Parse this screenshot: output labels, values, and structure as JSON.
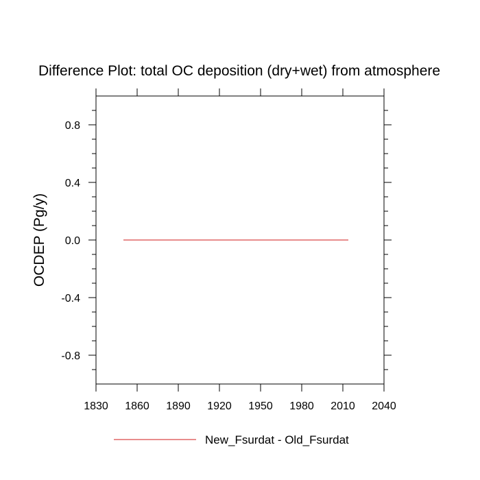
{
  "chart_data": {
    "type": "line",
    "title": "Difference Plot: total OC deposition (dry+wet) from atmosphere",
    "xlabel": "",
    "ylabel": "OCDEP  (Pg/y)",
    "xlim": [
      1830,
      2040
    ],
    "ylim": [
      -1.0,
      1.0
    ],
    "x_ticks": [
      1830,
      1860,
      1890,
      1920,
      1950,
      1980,
      2010,
      2040
    ],
    "x_tick_labels": [
      "1830",
      "1860",
      "1890",
      "1920",
      "1950",
      "1980",
      "2010",
      "2040"
    ],
    "y_ticks": [
      0.8,
      0.4,
      0.0,
      -0.4,
      -0.8
    ],
    "y_tick_labels": [
      "0.8",
      "0.4",
      "0.0",
      "-0.4",
      "-0.8"
    ],
    "grid": false,
    "legend_position": "bottom",
    "series": [
      {
        "name": "New_Fsurdat - Old_Fsurdat",
        "color": "#e06666",
        "x": [
          1850,
          2014
        ],
        "y": [
          0.0,
          0.0
        ]
      }
    ]
  }
}
